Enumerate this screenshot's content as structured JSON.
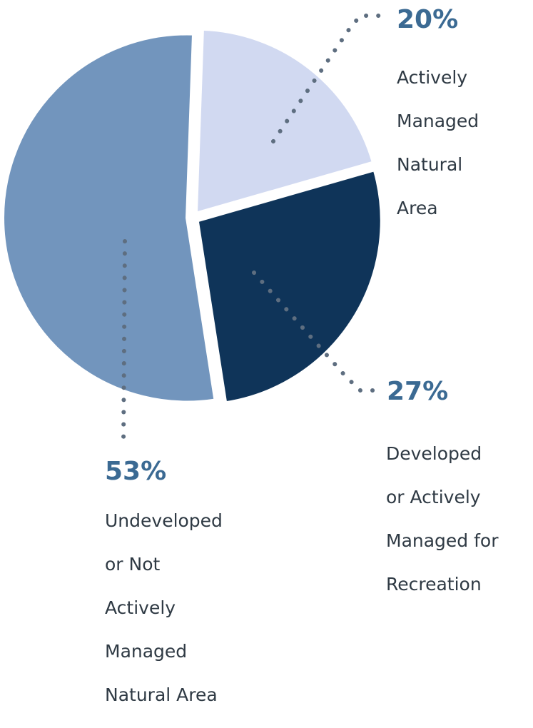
{
  "chart_data": {
    "type": "pie",
    "title": "",
    "slices": [
      {
        "label_lines": [
          "Actively",
          "Managed",
          "Natural",
          "Area"
        ],
        "value": 20,
        "value_label": "20%",
        "color": "#d1d9f1"
      },
      {
        "label_lines": [
          "Developed",
          "or Actively",
          "Managed for",
          "Recreation"
        ],
        "value": 27,
        "value_label": "27%",
        "color": "#0f3459"
      },
      {
        "label_lines": [
          "Undeveloped",
          "or Not",
          "Actively",
          "Managed",
          "Natural Area"
        ],
        "value": 53,
        "value_label": "53%",
        "color": "#7295bd"
      }
    ],
    "leader_color": "#5e6e80",
    "label_value_color": "#3b6a93",
    "label_text_color": "#2f3a44"
  }
}
